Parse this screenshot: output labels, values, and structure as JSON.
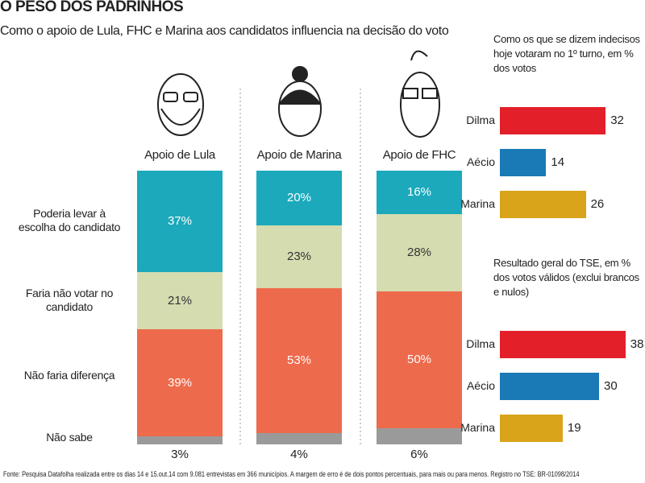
{
  "title": "O PESO DOS PADRINHOS",
  "subtitle": "Como o apoio de Lula, FHC e Marina aos candidatos influencia na decisão do voto",
  "source": "Fonte: Pesquisa Datafolha realizada entre os dias 14 e 15.out.14 com 9.081 entrevistas em 366 municípios. A margem de erro é de dois pontos percentuais, para mais ou para menos. Registro no TSE: BR-01098/2014",
  "chart_data": [
    {
      "type": "stacked-bar",
      "categories": [
        "Apoio de Lula",
        "Apoio de Marina",
        "Apoio de FHC"
      ],
      "series": [
        {
          "name": "Poderia levar à escolha do candidato",
          "color": "#1ba9bb",
          "values": [
            37,
            20,
            16
          ],
          "value_labels": [
            "37%",
            "20%",
            "16%"
          ]
        },
        {
          "name": "Faria não votar no candidato",
          "color": "#d5dcb0",
          "values": [
            21,
            23,
            28
          ],
          "value_labels": [
            "21%",
            "23%",
            "28%"
          ]
        },
        {
          "name": "Não faria diferença",
          "color": "#ee6a4c",
          "values": [
            39,
            53,
            50
          ],
          "value_labels": [
            "39%",
            "53%",
            "50%"
          ]
        },
        {
          "name": "Não sabe",
          "color": "#9a9a9a",
          "values": [
            3,
            4,
            6
          ],
          "value_labels": [
            "3%",
            "4%",
            "6%"
          ]
        }
      ]
    },
    {
      "type": "hbar",
      "title": "Como os que se dizem indecisos hoje votaram no 1º turno, em % dos votos",
      "categories": [
        "Dilma",
        "Aécio",
        "Marina"
      ],
      "values": [
        32,
        14,
        26
      ],
      "colors": [
        "#e3202a",
        "#1a7ab5",
        "#d9a31a"
      ]
    },
    {
      "type": "hbar",
      "title": "Resultado geral do TSE, em % dos votos válidos (exclui brancos e nulos)",
      "categories": [
        "Dilma",
        "Aécio",
        "Marina"
      ],
      "values": [
        38,
        30,
        19
      ],
      "colors": [
        "#e3202a",
        "#1a7ab5",
        "#d9a31a"
      ]
    }
  ]
}
